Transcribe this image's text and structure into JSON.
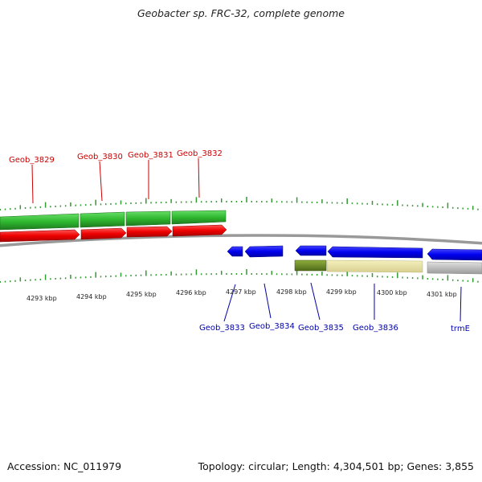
{
  "title": "Geobacter sp. FRC-32, complete genome",
  "footer": {
    "accession": "Accession: NC_011979",
    "topology": "Topology: circular; Length: 4,304,501 bp; Genes: 3,855"
  },
  "colors": {
    "forward_label": "#cc0000",
    "reverse_label": "#0000aa",
    "cds_forward": "#ff0000",
    "cds_reverse": "#0000ee",
    "gene_forward": "#33cc33",
    "gene_olive": "#6b8e23",
    "gene_yellow": "#eee8aa",
    "gene_gray": "#c0c0c0",
    "ticks": "#339933",
    "backbone": "#888888"
  },
  "scale_labels": [
    "4293 kbp",
    "4294 kbp",
    "4295 kbp",
    "4296 kbp",
    "4297 kbp",
    "4298 kbp",
    "4299 kbp",
    "4300 kbp",
    "4301 kbp"
  ],
  "forward_genes": [
    "Geob_3829",
    "Geob_3830",
    "Geob_3831",
    "Geob_3832"
  ],
  "reverse_genes": [
    "Geob_3833",
    "Geob_3834",
    "Geob_3835",
    "Geob_3836",
    "trmE"
  ]
}
